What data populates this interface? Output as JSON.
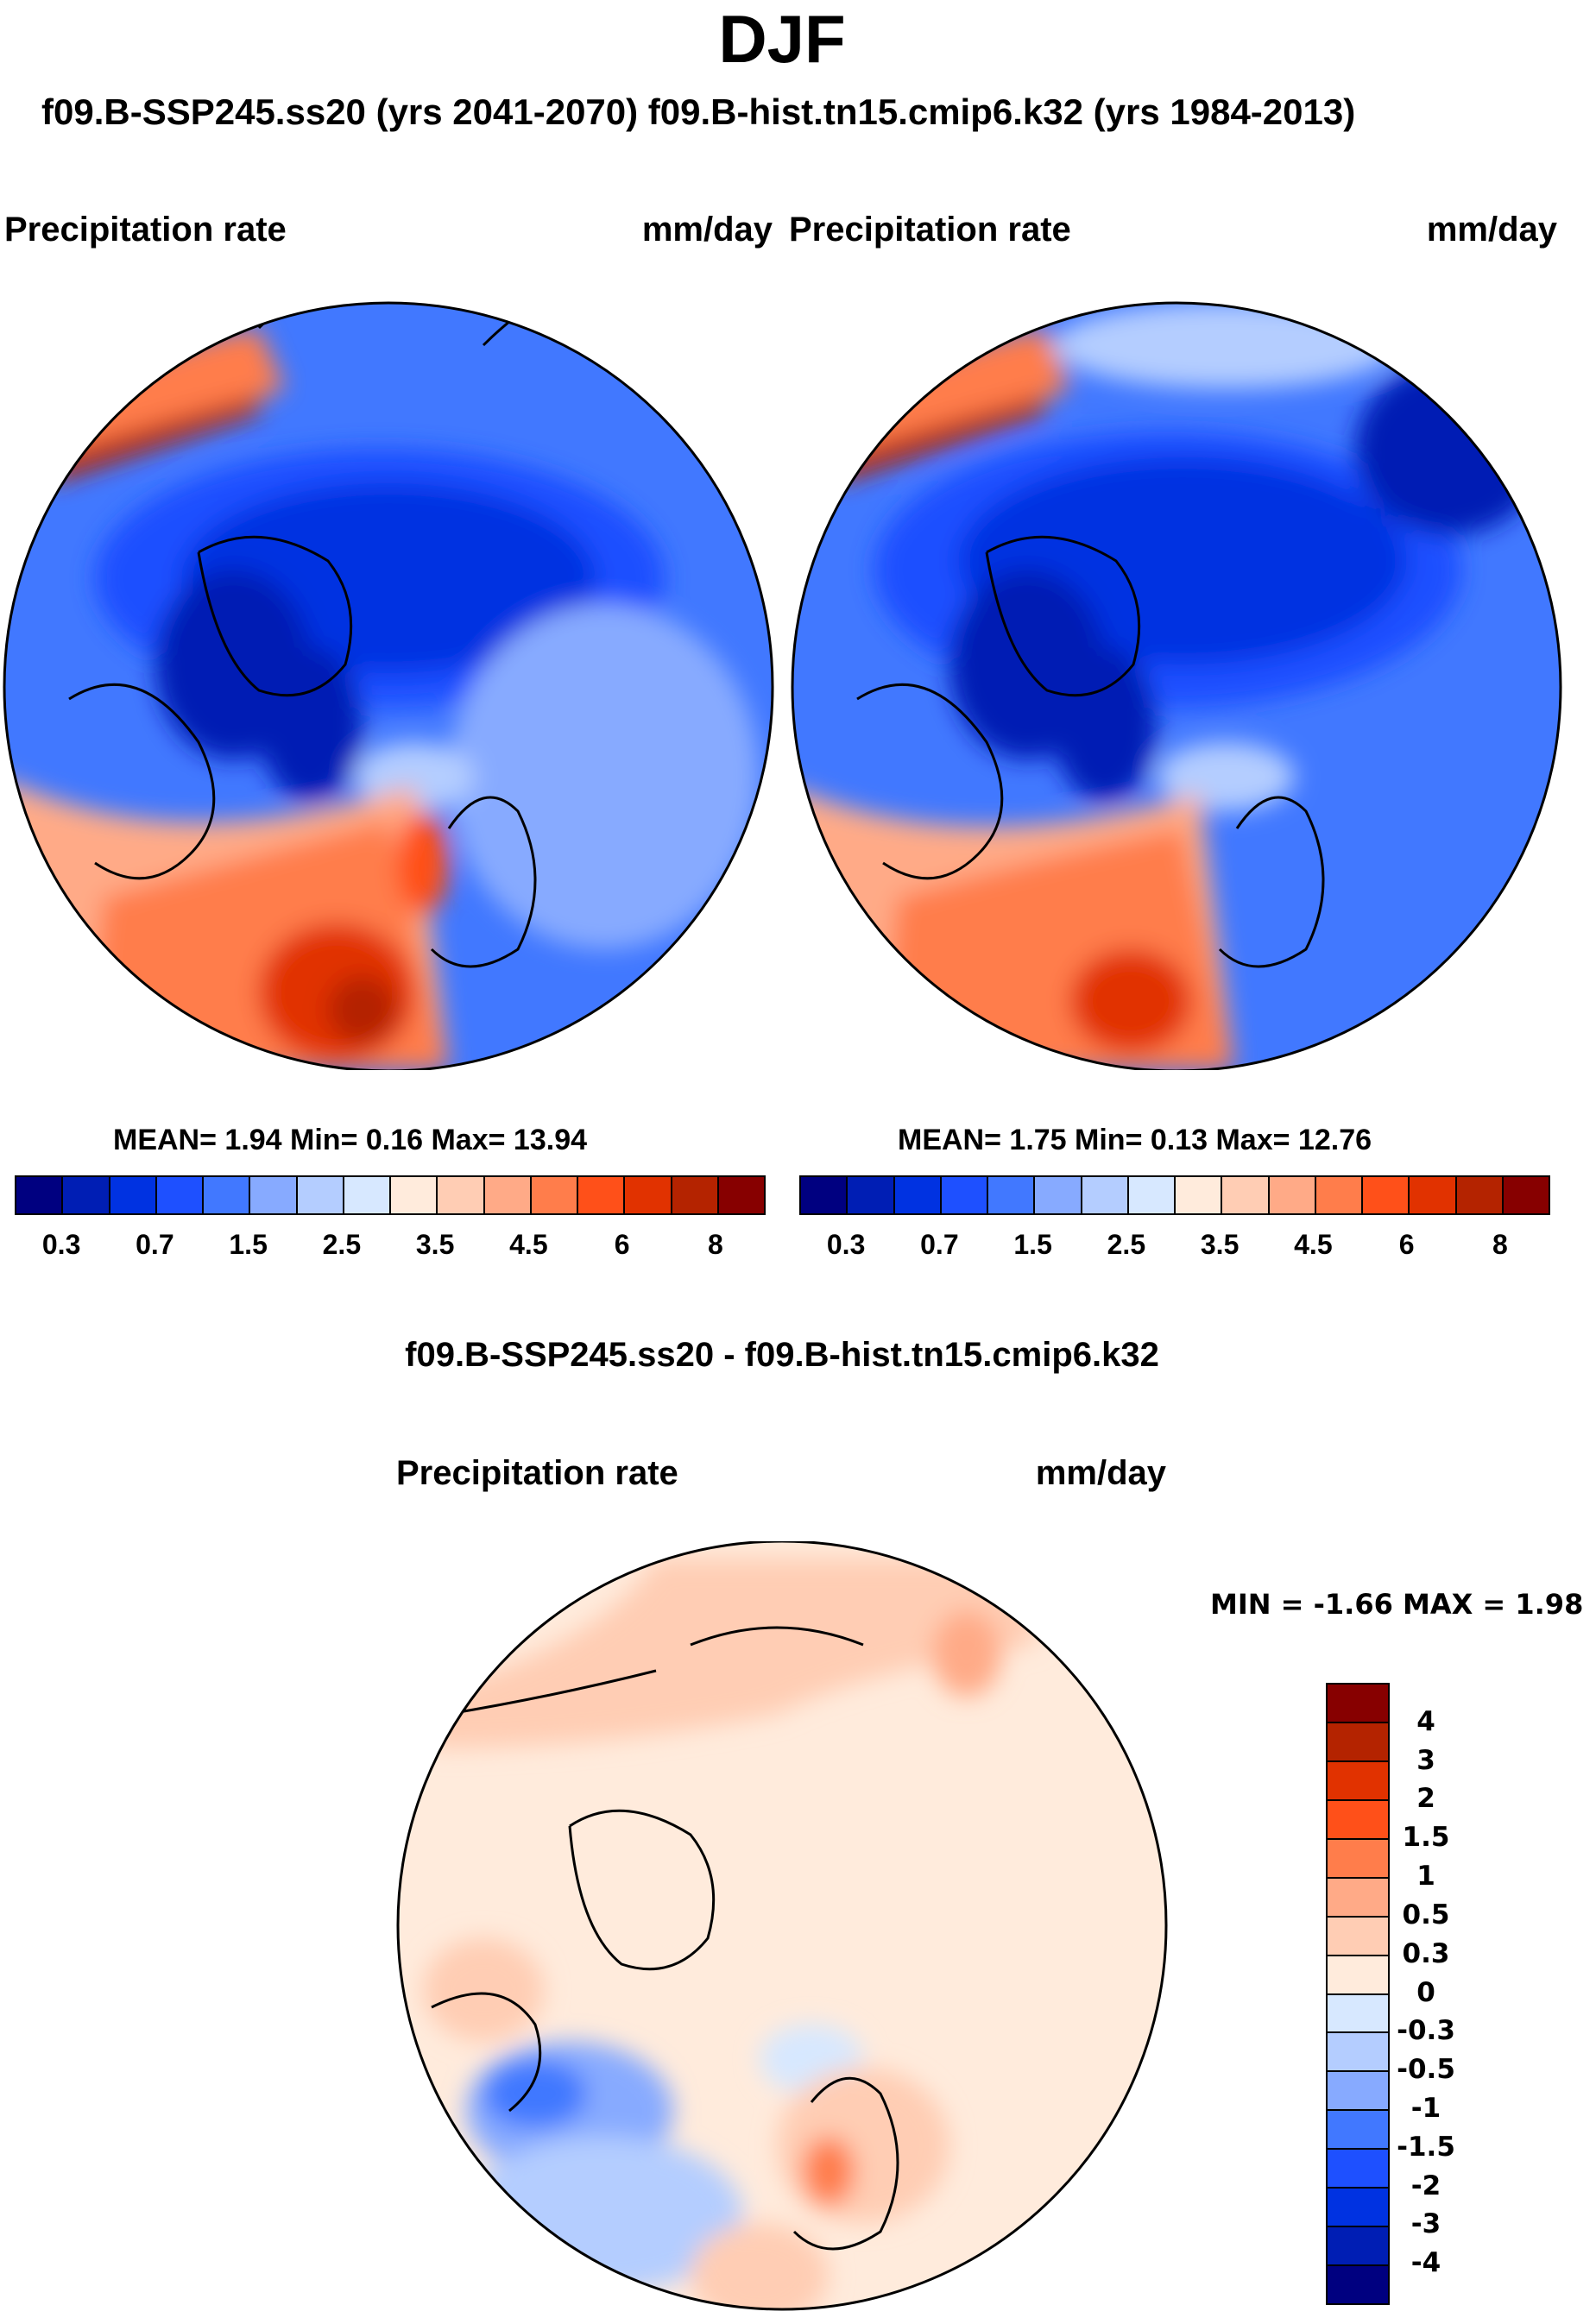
{
  "title": "DJF",
  "subtitle": "f09.B-SSP245.ss20 (yrs 2041-2070)  f09.B-hist.tn15.cmip6.k32 (yrs 1984-2013)",
  "panels": [
    {
      "title": "Precipitation rate",
      "units": "mm/day",
      "stats": "MEAN=  1.94  Min=  0.16  Max=  13.94"
    },
    {
      "title": "Precipitation rate",
      "units": "mm/day",
      "stats": "MEAN=  1.75  Min=  0.13  Max=  12.76"
    }
  ],
  "abs_colorbar": {
    "colors": [
      "#000080",
      "#001eb4",
      "#0032e1",
      "#1e50ff",
      "#4178ff",
      "#87aaff",
      "#b4cdff",
      "#d7e8ff",
      "#ffebdc",
      "#ffcdb4",
      "#ffaa87",
      "#ff7d4b",
      "#ff5019",
      "#e13200",
      "#b42300",
      "#870000"
    ],
    "labels": [
      "0.3",
      "0.7",
      "1.5",
      "2.5",
      "3.5",
      "4.5",
      "6",
      "8"
    ]
  },
  "diff": {
    "title": "f09.B-SSP245.ss20 - f09.B-hist.tn15.cmip6.k32",
    "panel_title": "Precipitation rate",
    "units": "mm/day",
    "minmax": "MIN =  -1.66 MAX =   1.98",
    "colorbar": {
      "colors_top_to_bottom": [
        "#870000",
        "#b42300",
        "#e13200",
        "#ff5019",
        "#ff7d4b",
        "#ffaa87",
        "#ffcdb4",
        "#ffebdc",
        "#d7e8ff",
        "#b4cdff",
        "#87aaff",
        "#4178ff",
        "#1e50ff",
        "#0032e1",
        "#001eb4",
        "#000080"
      ],
      "labels_top_to_bottom": [
        "4",
        "3",
        "2",
        "1.5",
        "1",
        "0.5",
        "0.3",
        "0",
        "-0.3",
        "-0.5",
        "-1",
        "-1.5",
        "-2",
        "-3",
        "-4"
      ]
    }
  }
}
